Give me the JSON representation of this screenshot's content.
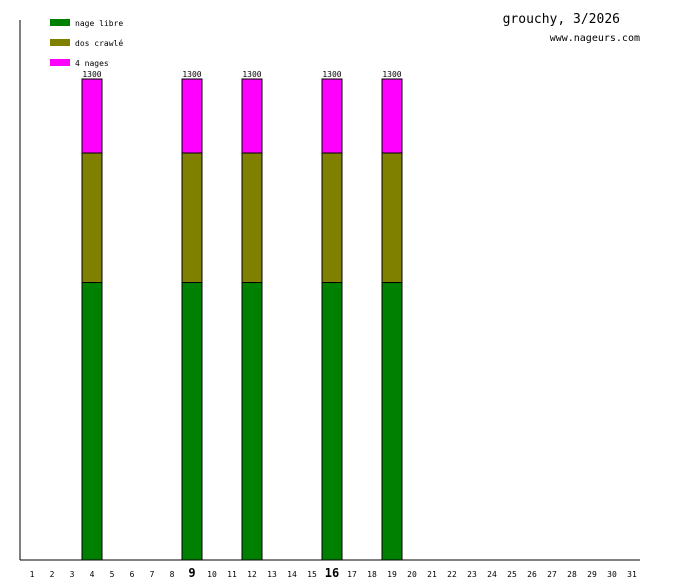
{
  "chart_data": {
    "type": "bar",
    "stacked": true,
    "title": "grouchy, 3/2026",
    "subtitle": "www.nageurs.com",
    "categories": [
      "1",
      "2",
      "3",
      "4",
      "5",
      "6",
      "7",
      "8",
      "9",
      "10",
      "11",
      "12",
      "13",
      "14",
      "15",
      "16",
      "17",
      "18",
      "19",
      "20",
      "21",
      "22",
      "23",
      "24",
      "25",
      "26",
      "27",
      "28",
      "29",
      "30",
      "31"
    ],
    "highlighted_categories": [
      "9",
      "16"
    ],
    "series": [
      {
        "name": "nage libre",
        "color": "#008000",
        "values": [
          0,
          0,
          0,
          750,
          0,
          0,
          0,
          0,
          750,
          0,
          0,
          750,
          0,
          0,
          0,
          750,
          0,
          0,
          750,
          0,
          0,
          0,
          0,
          0,
          0,
          0,
          0,
          0,
          0,
          0,
          0
        ]
      },
      {
        "name": "dos crawlé",
        "color": "#808000",
        "values": [
          0,
          0,
          0,
          350,
          0,
          0,
          0,
          0,
          350,
          0,
          0,
          350,
          0,
          0,
          0,
          350,
          0,
          0,
          350,
          0,
          0,
          0,
          0,
          0,
          0,
          0,
          0,
          0,
          0,
          0,
          0
        ]
      },
      {
        "name": "4 nages",
        "color": "#ff00ff",
        "values": [
          0,
          0,
          0,
          200,
          0,
          0,
          0,
          0,
          200,
          0,
          0,
          200,
          0,
          0,
          0,
          200,
          0,
          0,
          200,
          0,
          0,
          0,
          0,
          0,
          0,
          0,
          0,
          0,
          0,
          0,
          0
        ]
      }
    ],
    "totals": [
      0,
      0,
      0,
      1300,
      0,
      0,
      0,
      0,
      1300,
      0,
      0,
      1300,
      0,
      0,
      0,
      1300,
      0,
      0,
      1300,
      0,
      0,
      0,
      0,
      0,
      0,
      0,
      0,
      0,
      0,
      0,
      0
    ],
    "ylim": [
      0,
      1300
    ],
    "legend_position": "top-left",
    "grid": false
  }
}
